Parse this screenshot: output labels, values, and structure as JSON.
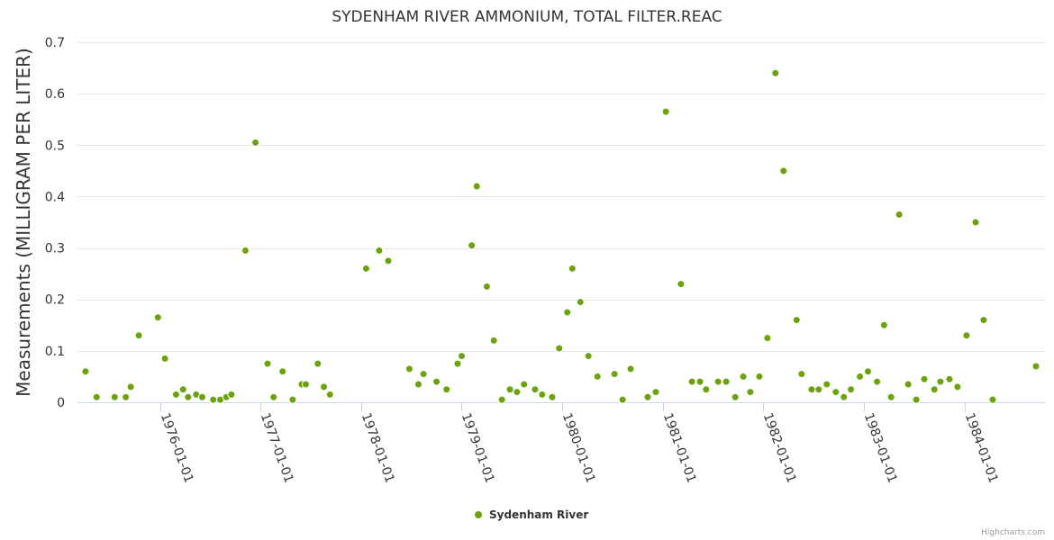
{
  "chart_data": {
    "type": "scatter",
    "title": "SYDENHAM RIVER AMMONIUM, TOTAL FILTER.REAC",
    "ylabel": "Measurements (MILLIGRAM PER LITER)",
    "xlabel": "",
    "ylim": [
      0,
      0.7
    ],
    "yticks": [
      0,
      0.1,
      0.2,
      0.3,
      0.4,
      0.5,
      0.6,
      0.7
    ],
    "ytick_labels": [
      "0",
      "0.1",
      "0.2",
      "0.3",
      "0.4",
      "0.5",
      "0.6",
      "0.7"
    ],
    "xlim": [
      1975.18,
      1984.8
    ],
    "xticks": [
      1976,
      1977,
      1978,
      1979,
      1980,
      1981,
      1982,
      1983,
      1984
    ],
    "xtick_labels": [
      "1976-01-01",
      "1977-01-01",
      "1978-01-01",
      "1979-01-01",
      "1980-01-01",
      "1981-01-01",
      "1982-01-01",
      "1983-01-01",
      "1984-01-01"
    ],
    "legend": [
      "Sydenham River"
    ],
    "legend_position": "bottom-center",
    "grid": true,
    "series": [
      {
        "name": "Sydenham River",
        "color": "#6aa30c",
        "points": [
          [
            1975.26,
            0.06
          ],
          [
            1975.37,
            0.01
          ],
          [
            1975.55,
            0.01
          ],
          [
            1975.66,
            0.01
          ],
          [
            1975.71,
            0.03
          ],
          [
            1975.79,
            0.13
          ],
          [
            1975.98,
            0.165
          ],
          [
            1976.05,
            0.085
          ],
          [
            1976.16,
            0.015
          ],
          [
            1976.23,
            0.025
          ],
          [
            1976.28,
            0.01
          ],
          [
            1976.36,
            0.015
          ],
          [
            1976.42,
            0.01
          ],
          [
            1976.53,
            0.005
          ],
          [
            1976.6,
            0.005
          ],
          [
            1976.66,
            0.01
          ],
          [
            1976.71,
            0.015
          ],
          [
            1976.85,
            0.295
          ],
          [
            1976.95,
            0.505
          ],
          [
            1977.07,
            0.075
          ],
          [
            1977.13,
            0.01
          ],
          [
            1977.22,
            0.06
          ],
          [
            1977.32,
            0.005
          ],
          [
            1977.41,
            0.035
          ],
          [
            1977.45,
            0.035
          ],
          [
            1977.57,
            0.075
          ],
          [
            1977.63,
            0.03
          ],
          [
            1977.69,
            0.015
          ],
          [
            1978.05,
            0.26
          ],
          [
            1978.18,
            0.295
          ],
          [
            1978.27,
            0.275
          ],
          [
            1978.48,
            0.065
          ],
          [
            1978.57,
            0.035
          ],
          [
            1978.62,
            0.055
          ],
          [
            1978.75,
            0.04
          ],
          [
            1978.85,
            0.025
          ],
          [
            1978.96,
            0.075
          ],
          [
            1979.0,
            0.09
          ],
          [
            1979.1,
            0.305
          ],
          [
            1979.15,
            0.42
          ],
          [
            1979.25,
            0.225
          ],
          [
            1979.32,
            0.12
          ],
          [
            1979.4,
            0.005
          ],
          [
            1979.48,
            0.025
          ],
          [
            1979.55,
            0.02
          ],
          [
            1979.62,
            0.035
          ],
          [
            1979.73,
            0.025
          ],
          [
            1979.8,
            0.015
          ],
          [
            1979.9,
            0.01
          ],
          [
            1979.97,
            0.105
          ],
          [
            1980.05,
            0.175
          ],
          [
            1980.1,
            0.26
          ],
          [
            1980.18,
            0.195
          ],
          [
            1980.26,
            0.09
          ],
          [
            1980.35,
            0.05
          ],
          [
            1980.52,
            0.055
          ],
          [
            1980.6,
            0.005
          ],
          [
            1980.68,
            0.065
          ],
          [
            1980.85,
            0.01
          ],
          [
            1980.93,
            0.02
          ],
          [
            1981.03,
            0.565
          ],
          [
            1981.18,
            0.23
          ],
          [
            1981.29,
            0.04
          ],
          [
            1981.37,
            0.04
          ],
          [
            1981.43,
            0.025
          ],
          [
            1981.55,
            0.04
          ],
          [
            1981.63,
            0.04
          ],
          [
            1981.72,
            0.01
          ],
          [
            1981.8,
            0.05
          ],
          [
            1981.87,
            0.02
          ],
          [
            1981.96,
            0.05
          ],
          [
            1982.04,
            0.125
          ],
          [
            1982.12,
            0.64
          ],
          [
            1982.2,
            0.45
          ],
          [
            1982.33,
            0.16
          ],
          [
            1982.38,
            0.055
          ],
          [
            1982.48,
            0.025
          ],
          [
            1982.55,
            0.025
          ],
          [
            1982.63,
            0.035
          ],
          [
            1982.72,
            0.02
          ],
          [
            1982.8,
            0.01
          ],
          [
            1982.87,
            0.025
          ],
          [
            1982.96,
            0.05
          ],
          [
            1983.04,
            0.06
          ],
          [
            1983.13,
            0.04
          ],
          [
            1983.2,
            0.15
          ],
          [
            1983.27,
            0.01
          ],
          [
            1983.35,
            0.365
          ],
          [
            1983.44,
            0.035
          ],
          [
            1983.52,
            0.005
          ],
          [
            1983.6,
            0.045
          ],
          [
            1983.7,
            0.025
          ],
          [
            1983.76,
            0.04
          ],
          [
            1983.85,
            0.045
          ],
          [
            1983.93,
            0.03
          ],
          [
            1984.02,
            0.13
          ],
          [
            1984.11,
            0.35
          ],
          [
            1984.19,
            0.16
          ],
          [
            1984.28,
            0.005
          ],
          [
            1984.71,
            0.07
          ]
        ]
      }
    ]
  },
  "credit": "Highcharts.com"
}
